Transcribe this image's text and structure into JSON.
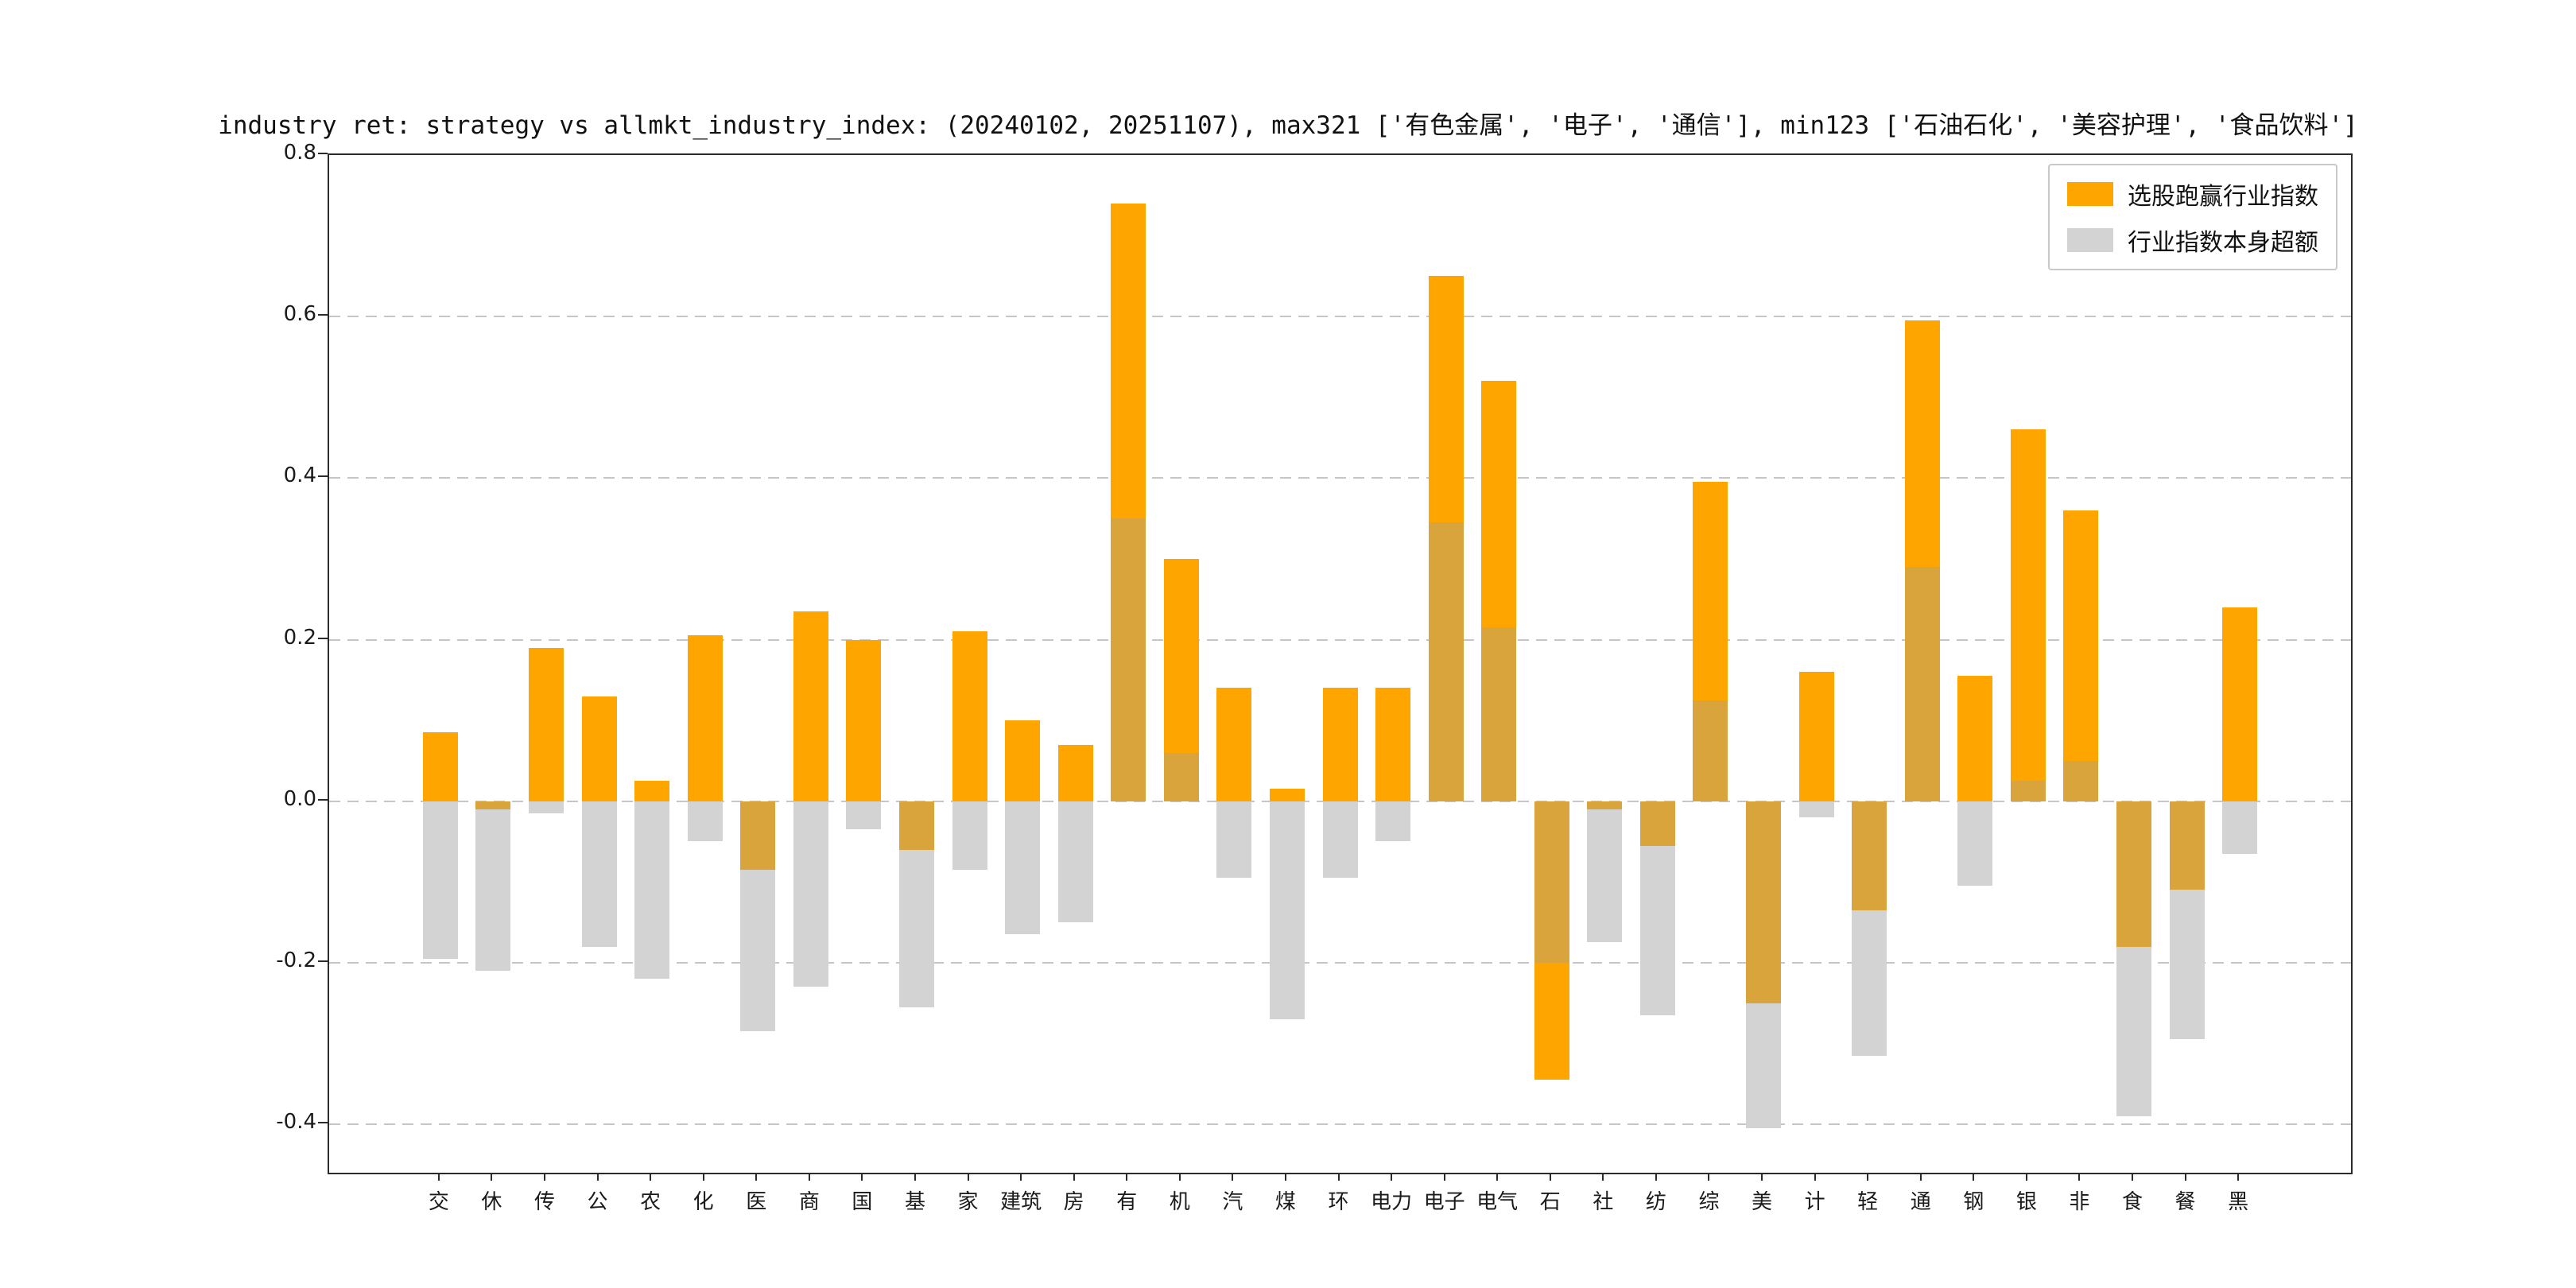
{
  "chart_data": {
    "type": "bar",
    "title": "industry ret: strategy vs allmkt_industry_index: (20240102, 20251107), max321 ['有色金属', '电子', '通信'], min123 ['石油石化', '美容护理', '食品饮料']",
    "categories": [
      "交",
      "休",
      "传",
      "公",
      "农",
      "化",
      "医",
      "商",
      "国",
      "基",
      "家",
      "建筑",
      "房",
      "有",
      "机",
      "汽",
      "煤",
      "环",
      "电力",
      "电子",
      "电气",
      "石",
      "社",
      "纺",
      "综",
      "美",
      "计",
      "轻",
      "通",
      "钢",
      "银",
      "非",
      "食",
      "餐",
      "黑"
    ],
    "series": [
      {
        "name": "选股跑赢行业指数",
        "color": "#FFA500",
        "values": [
          0.085,
          -0.01,
          0.19,
          0.13,
          0.025,
          0.205,
          -0.085,
          0.235,
          0.2,
          -0.06,
          0.21,
          0.1,
          0.07,
          0.74,
          0.3,
          0.14,
          0.015,
          0.14,
          0.14,
          0.65,
          0.52,
          -0.345,
          -0.01,
          -0.055,
          0.395,
          -0.25,
          0.16,
          -0.135,
          0.595,
          0.155,
          0.46,
          0.36,
          -0.18,
          -0.11,
          0.24
        ]
      },
      {
        "name": "行业指数本身超额",
        "color": "#D3D3D3",
        "values": [
          -0.195,
          -0.21,
          -0.015,
          -0.18,
          -0.22,
          -0.05,
          -0.285,
          -0.23,
          -0.035,
          -0.255,
          -0.085,
          -0.165,
          -0.15,
          0.35,
          0.06,
          -0.095,
          -0.27,
          -0.095,
          -0.05,
          0.345,
          0.215,
          -0.2,
          -0.175,
          -0.265,
          0.125,
          -0.405,
          -0.02,
          -0.315,
          0.29,
          -0.105,
          0.025,
          0.05,
          -0.39,
          -0.295,
          -0.065
        ]
      }
    ],
    "overlap_color": "#D9A43B",
    "ylim": [
      -0.46,
      0.8
    ],
    "yticks": [
      0.8,
      0.6,
      0.4,
      0.2,
      0.0,
      -0.2,
      -0.4
    ],
    "grid": true,
    "legend_position": "upper right"
  }
}
